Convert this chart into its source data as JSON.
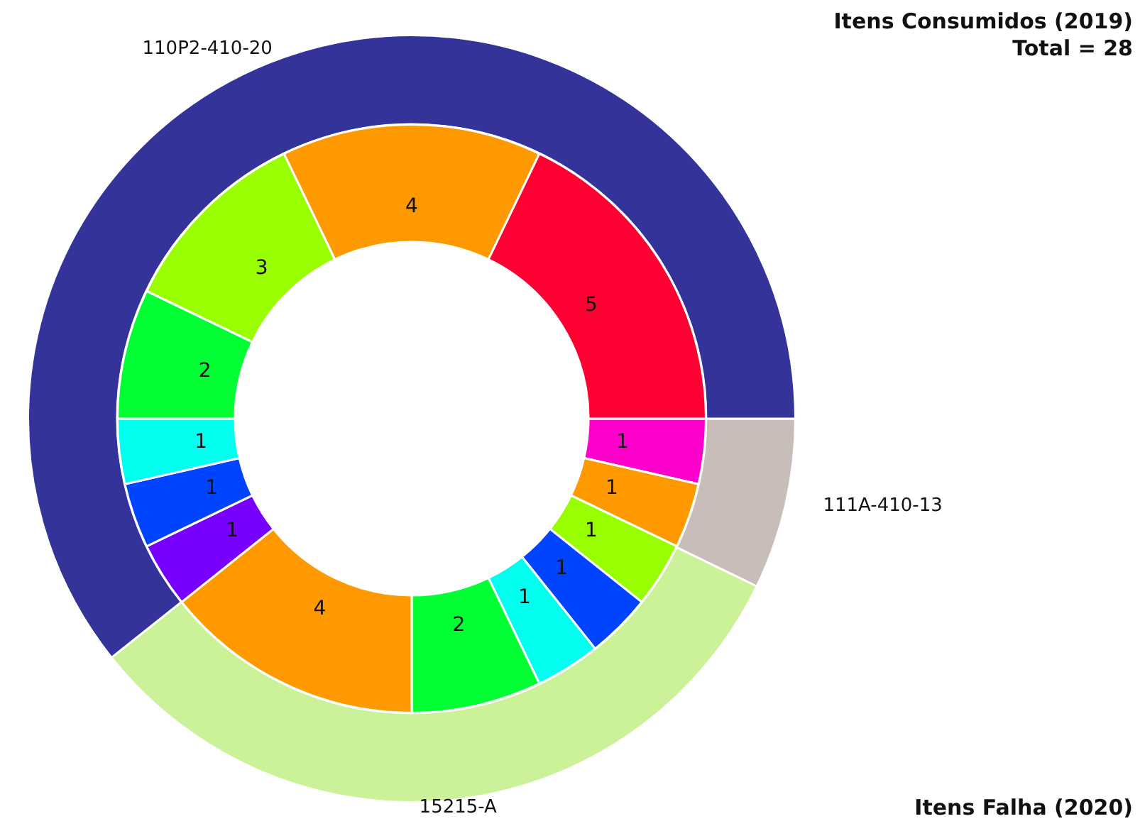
{
  "chart_data": [
    {
      "type": "donut",
      "title": "Itens Consumidos (2019)",
      "subtitle": "Total = 28",
      "annotations": [
        "Itens Falha (2020)"
      ],
      "categories": [
        "110P2-410-20",
        "15215-A",
        "111A-410-13"
      ],
      "values": [
        60.7,
        32.1,
        7.2
      ],
      "colors": [
        "#333399",
        "#ccf299",
        "#c8bdb8"
      ]
    },
    {
      "type": "donut",
      "categories": [
        null,
        null,
        null,
        null,
        null,
        null,
        null,
        null,
        null,
        null,
        null,
        null,
        null,
        null
      ],
      "values": [
        5,
        4,
        3,
        2,
        1,
        1,
        1,
        4,
        2,
        1,
        1,
        1,
        1,
        1
      ],
      "colors": [
        "#ff0033",
        "#ff9900",
        "#99ff00",
        "#00ff33",
        "#00ffee",
        "#0044ff",
        "#7700ff",
        "#ff9900",
        "#00ff33",
        "#00ffee",
        "#0044ff",
        "#99ff00",
        "#ff9900",
        "#ff00cc"
      ],
      "data_labels": true
    }
  ]
}
